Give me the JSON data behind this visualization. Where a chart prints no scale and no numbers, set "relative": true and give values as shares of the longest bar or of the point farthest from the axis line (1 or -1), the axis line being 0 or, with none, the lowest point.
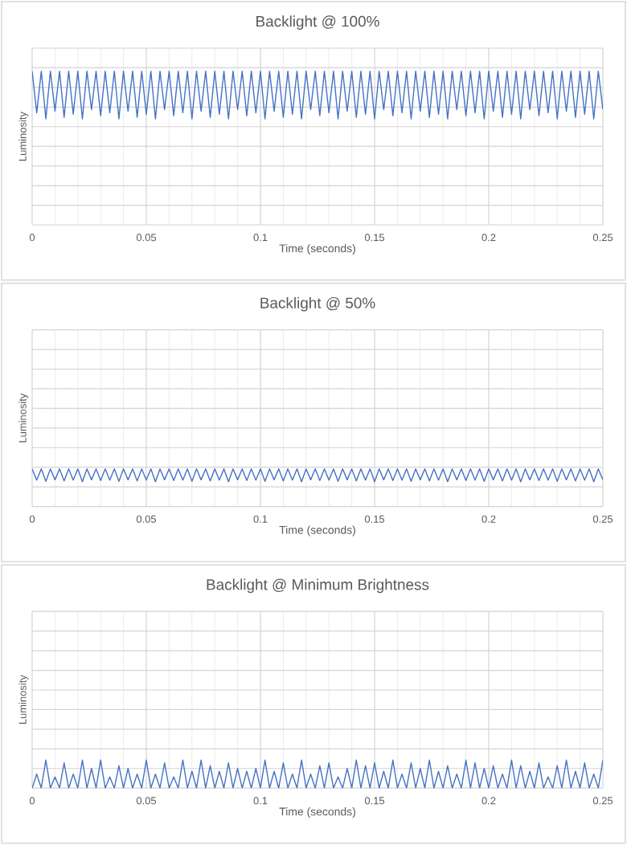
{
  "chart_data": [
    {
      "type": "line",
      "title": "Backlight @ 100%",
      "xlabel": "Time (seconds)",
      "ylabel": "Luminosity",
      "relative": true,
      "color": "#4472c4",
      "grid": true,
      "xlim": [
        0,
        0.25
      ],
      "xticks": [
        0,
        0.05,
        0.1,
        0.15,
        0.2,
        0.25
      ],
      "x": [
        0,
        0.002,
        0.004,
        0.006,
        0.008,
        0.01,
        0.012,
        0.014,
        0.016,
        0.018,
        0.02,
        0.022,
        0.024,
        0.026,
        0.028,
        0.03,
        0.032,
        0.034,
        0.036,
        0.038,
        0.04,
        0.042,
        0.044,
        0.046,
        0.048,
        0.05,
        0.052,
        0.054,
        0.056,
        0.058,
        0.06,
        0.062,
        0.064,
        0.066,
        0.068,
        0.07,
        0.072,
        0.074,
        0.076,
        0.078,
        0.08,
        0.082,
        0.084,
        0.086,
        0.088,
        0.09,
        0.092,
        0.094,
        0.096,
        0.098,
        0.1,
        0.102,
        0.104,
        0.106,
        0.108,
        0.11,
        0.112,
        0.114,
        0.116,
        0.118,
        0.12,
        0.122,
        0.124,
        0.126,
        0.128,
        0.13,
        0.132,
        0.134,
        0.136,
        0.138,
        0.14,
        0.142,
        0.144,
        0.146,
        0.148,
        0.15,
        0.152,
        0.154,
        0.156,
        0.158,
        0.16,
        0.162,
        0.164,
        0.166,
        0.168,
        0.17,
        0.172,
        0.174,
        0.176,
        0.178,
        0.18,
        0.182,
        0.184,
        0.186,
        0.188,
        0.19,
        0.192,
        0.194,
        0.196,
        0.198,
        0.2,
        0.202,
        0.204,
        0.206,
        0.208,
        0.21,
        0.212,
        0.214,
        0.216,
        0.218,
        0.22,
        0.222,
        0.224,
        0.226,
        0.228,
        0.23,
        0.232,
        0.234,
        0.236,
        0.238,
        0.24,
        0.242,
        0.244,
        0.246,
        0.248,
        0.25
      ],
      "values": [
        1,
        0.73,
        1,
        0.69,
        1,
        0.74,
        1,
        0.7,
        1,
        0.72,
        1,
        0.69,
        1,
        0.75,
        1,
        0.71,
        1,
        0.73,
        1,
        0.69,
        1,
        0.74,
        1,
        0.7,
        1,
        0.72,
        1,
        0.69,
        1,
        0.75,
        1,
        0.71,
        1,
        0.73,
        1,
        0.69,
        1,
        0.74,
        1,
        0.7,
        1,
        0.72,
        1,
        0.69,
        1,
        0.75,
        1,
        0.71,
        1,
        0.73,
        1,
        0.69,
        1,
        0.74,
        1,
        0.7,
        1,
        0.72,
        1,
        0.69,
        1,
        0.75,
        1,
        0.71,
        1,
        0.73,
        1,
        0.69,
        1,
        0.74,
        1,
        0.7,
        1,
        0.72,
        1,
        0.69,
        1,
        0.75,
        1,
        0.71,
        1,
        0.73,
        1,
        0.69,
        1,
        0.74,
        1,
        0.7,
        1,
        0.72,
        1,
        0.69,
        1,
        0.75,
        1,
        0.71,
        1,
        0.73,
        1,
        0.69,
        1,
        0.74,
        1,
        0.7,
        1,
        0.72,
        1,
        0.69,
        1,
        0.75,
        1,
        0.71,
        1,
        0.73,
        1,
        0.69,
        1,
        0.74,
        1,
        0.7,
        1,
        0.72,
        1,
        0.69,
        1,
        0.75
      ]
    },
    {
      "type": "line",
      "title": "Backlight @ 50%",
      "xlabel": "Time (seconds)",
      "ylabel": "Luminosity",
      "relative": true,
      "color": "#4472c4",
      "grid": true,
      "xlim": [
        0,
        0.25
      ],
      "xticks": [
        0,
        0.05,
        0.1,
        0.15,
        0.2,
        0.25
      ],
      "x": [
        0,
        0.002,
        0.004,
        0.006,
        0.008,
        0.01,
        0.012,
        0.014,
        0.016,
        0.018,
        0.02,
        0.022,
        0.024,
        0.026,
        0.028,
        0.03,
        0.032,
        0.034,
        0.036,
        0.038,
        0.04,
        0.042,
        0.044,
        0.046,
        0.048,
        0.05,
        0.052,
        0.054,
        0.056,
        0.058,
        0.06,
        0.062,
        0.064,
        0.066,
        0.068,
        0.07,
        0.072,
        0.074,
        0.076,
        0.078,
        0.08,
        0.082,
        0.084,
        0.086,
        0.088,
        0.09,
        0.092,
        0.094,
        0.096,
        0.098,
        0.1,
        0.102,
        0.104,
        0.106,
        0.108,
        0.11,
        0.112,
        0.114,
        0.116,
        0.118,
        0.12,
        0.122,
        0.124,
        0.126,
        0.128,
        0.13,
        0.132,
        0.134,
        0.136,
        0.138,
        0.14,
        0.142,
        0.144,
        0.146,
        0.148,
        0.15,
        0.152,
        0.154,
        0.156,
        0.158,
        0.16,
        0.162,
        0.164,
        0.166,
        0.168,
        0.17,
        0.172,
        0.174,
        0.176,
        0.178,
        0.18,
        0.182,
        0.184,
        0.186,
        0.188,
        0.19,
        0.192,
        0.194,
        0.196,
        0.198,
        0.2,
        0.202,
        0.204,
        0.206,
        0.208,
        0.21,
        0.212,
        0.214,
        0.216,
        0.218,
        0.22,
        0.222,
        0.224,
        0.226,
        0.228,
        0.23,
        0.232,
        0.234,
        0.236,
        0.238,
        0.24,
        0.242,
        0.244,
        0.246,
        0.248,
        0.25
      ],
      "values": [
        1,
        0.7,
        1,
        0.67,
        1,
        0.71,
        1,
        0.68,
        1,
        0.7,
        1,
        0.66,
        1,
        0.71,
        1,
        0.69,
        1,
        0.7,
        1,
        0.67,
        1,
        0.71,
        1,
        0.68,
        1,
        0.7,
        1,
        0.66,
        1,
        0.71,
        1,
        0.69,
        1,
        0.7,
        1,
        0.67,
        1,
        0.71,
        1,
        0.68,
        1,
        0.7,
        1,
        0.66,
        1,
        0.71,
        1,
        0.69,
        1,
        0.7,
        1,
        0.67,
        1,
        0.71,
        1,
        0.68,
        1,
        0.7,
        1,
        0.66,
        1,
        0.71,
        1,
        0.69,
        1,
        0.7,
        1,
        0.67,
        1,
        0.71,
        1,
        0.68,
        1,
        0.7,
        1,
        0.66,
        1,
        0.71,
        1,
        0.69,
        1,
        0.7,
        1,
        0.67,
        1,
        0.71,
        1,
        0.68,
        1,
        0.7,
        1,
        0.66,
        1,
        0.71,
        1,
        0.69,
        1,
        0.7,
        1,
        0.67,
        1,
        0.71,
        1,
        0.68,
        1,
        0.7,
        1,
        0.66,
        1,
        0.71,
        1,
        0.69,
        1,
        0.7,
        1,
        0.67,
        1,
        0.71,
        1,
        0.68,
        1,
        0.7,
        1,
        0.66,
        1,
        0.71
      ]
    },
    {
      "type": "line",
      "title": "Backlight @ Minimum Brightness",
      "xlabel": "Time (seconds)",
      "ylabel": "Luminosity",
      "relative": true,
      "color": "#4472c4",
      "grid": true,
      "xlim": [
        0,
        0.25
      ],
      "xticks": [
        0,
        0.05,
        0.1,
        0.15,
        0.2,
        0.25
      ],
      "x": [
        0,
        0.002,
        0.004,
        0.006,
        0.008,
        0.01,
        0.012,
        0.014,
        0.016,
        0.018,
        0.02,
        0.022,
        0.024,
        0.026,
        0.028,
        0.03,
        0.032,
        0.034,
        0.036,
        0.038,
        0.04,
        0.042,
        0.044,
        0.046,
        0.048,
        0.05,
        0.052,
        0.054,
        0.056,
        0.058,
        0.06,
        0.062,
        0.064,
        0.066,
        0.068,
        0.07,
        0.072,
        0.074,
        0.076,
        0.078,
        0.08,
        0.082,
        0.084,
        0.086,
        0.088,
        0.09,
        0.092,
        0.094,
        0.096,
        0.098,
        0.1,
        0.102,
        0.104,
        0.106,
        0.108,
        0.11,
        0.112,
        0.114,
        0.116,
        0.118,
        0.12,
        0.122,
        0.124,
        0.126,
        0.128,
        0.13,
        0.132,
        0.134,
        0.136,
        0.138,
        0.14,
        0.142,
        0.144,
        0.146,
        0.148,
        0.15,
        0.152,
        0.154,
        0.156,
        0.158,
        0.16,
        0.162,
        0.164,
        0.166,
        0.168,
        0.17,
        0.172,
        0.174,
        0.176,
        0.178,
        0.18,
        0.182,
        0.184,
        0.186,
        0.188,
        0.19,
        0.192,
        0.194,
        0.196,
        0.198,
        0.2,
        0.202,
        0.204,
        0.206,
        0.208,
        0.21,
        0.212,
        0.214,
        0.216,
        0.218,
        0.22,
        0.222,
        0.224,
        0.226,
        0.228,
        0.23,
        0.232,
        0.234,
        0.236,
        0.238,
        0.24,
        0.242,
        0.244,
        0.246,
        0.248,
        0.25
      ],
      "values": [
        0,
        0.5,
        0,
        1,
        0,
        0.4,
        0,
        0.9,
        0,
        0.5,
        0,
        1,
        0,
        0.7,
        0,
        1,
        0,
        0.4,
        0,
        0.8,
        0,
        0.7,
        0,
        0.5,
        0,
        1,
        0,
        0.5,
        0,
        0.9,
        0,
        0.4,
        0,
        1,
        0,
        0.6,
        0,
        1,
        0,
        0.8,
        0,
        0.6,
        0,
        0.9,
        0,
        0.7,
        0,
        0.6,
        0,
        0.7,
        0,
        1,
        0,
        0.6,
        0,
        0.9,
        0,
        0.5,
        0,
        1,
        0,
        0.5,
        0,
        0.8,
        0,
        0.9,
        0,
        0.4,
        0,
        0.7,
        0,
        1,
        0,
        0.8,
        0,
        0.9,
        0,
        0.6,
        0,
        1,
        0,
        0.5,
        0,
        0.9,
        0,
        0.7,
        0,
        1,
        0,
        0.6,
        0,
        0.8,
        0,
        0.5,
        0,
        1,
        0,
        0.9,
        0,
        0.7,
        0,
        0.8,
        0,
        0.5,
        0,
        1,
        0,
        0.8,
        0,
        0.6,
        0,
        0.9,
        0,
        0.4,
        0,
        0.8,
        0,
        1,
        0,
        0.6,
        0,
        0.9,
        0,
        0.5,
        0,
        1
      ]
    }
  ]
}
